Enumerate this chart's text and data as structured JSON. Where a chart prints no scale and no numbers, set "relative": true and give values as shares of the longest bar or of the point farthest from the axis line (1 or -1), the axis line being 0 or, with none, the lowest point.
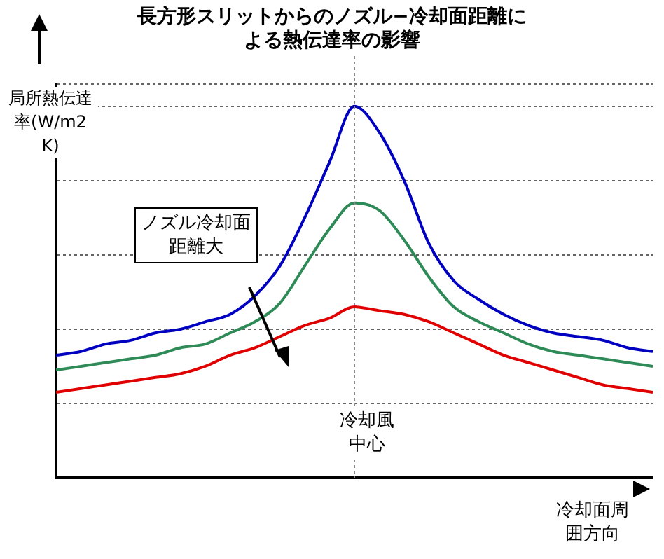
{
  "chart_data": {
    "type": "line",
    "title": "長方形スリットからのノズル−冷却面距離による熱伝達率の影響",
    "ylabel": "局所熱伝達率(W/m2 K)",
    "xlabel": "冷却面周囲方向",
    "relative": true,
    "grid": "y",
    "legend": false,
    "marker": "none",
    "categories": [
      null,
      null,
      null,
      null,
      null,
      null,
      null,
      null,
      null,
      null,
      null,
      null,
      null,
      null,
      null,
      null,
      null,
      null,
      null,
      null,
      null,
      null,
      null,
      null,
      null
    ],
    "series": [
      {
        "color": "#0000c0",
        "values": [
          0.33,
          0.34,
          0.36,
          0.37,
          0.39,
          0.4,
          0.42,
          0.44,
          0.49,
          0.57,
          0.7,
          0.85,
          1,
          0.93,
          0.8,
          0.63,
          0.53,
          0.48,
          0.44,
          0.41,
          0.39,
          0.38,
          0.37,
          0.35,
          0.34
        ]
      },
      {
        "color": "#2e8b57",
        "values": [
          0.29,
          0.3,
          0.31,
          0.32,
          0.33,
          0.35,
          0.36,
          0.39,
          0.42,
          0.47,
          0.57,
          0.67,
          0.74,
          0.72,
          0.64,
          0.54,
          0.46,
          0.42,
          0.39,
          0.36,
          0.34,
          0.33,
          0.32,
          0.31,
          0.3
        ]
      },
      {
        "color": "#e00000",
        "values": [
          0.23,
          0.24,
          0.25,
          0.26,
          0.27,
          0.28,
          0.3,
          0.33,
          0.35,
          0.38,
          0.41,
          0.43,
          0.46,
          0.45,
          0.44,
          0.42,
          0.39,
          0.36,
          0.33,
          0.31,
          0.29,
          0.27,
          0.25,
          0.24,
          0.23
        ]
      }
    ],
    "annotations": [
      "ノズル冷却面距離大",
      "冷却風中心"
    ]
  }
}
